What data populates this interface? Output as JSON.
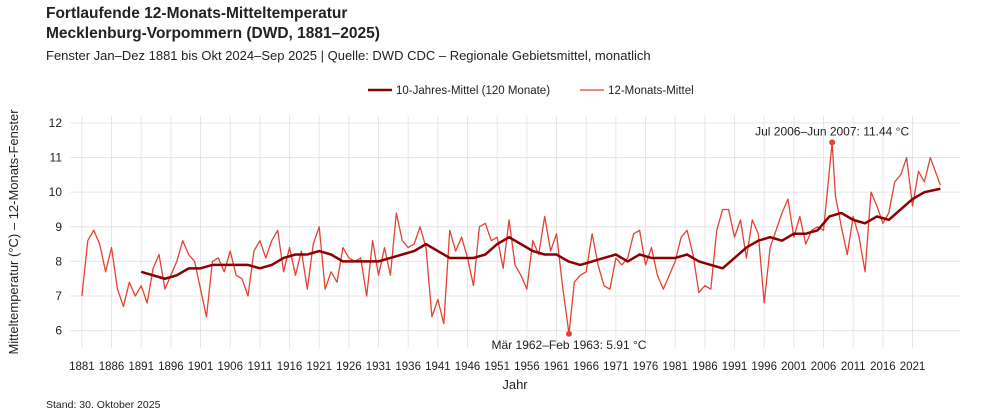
{
  "chart_data": {
    "type": "line",
    "title": "Fortlaufende 12-Monats-Mitteltemperatur",
    "title2": "Mecklenburg-Vorpommern (DWD, 1881–2025)",
    "subtitle": "Fenster Jan–Dez 1881 bis Okt 2024–Sep 2025 | Quelle: DWD CDC – Regionale Gebietsmittel, monatlich",
    "x_label": "Jahr",
    "y_label": "Mitteltemperatur (°C) – 12-Monats-Fenster",
    "caption": "Stand: 30. Oktober 2025",
    "xlim": [
      1879,
      2029
    ],
    "ylim": [
      5.5,
      12.2
    ],
    "xticks": [
      1881,
      1886,
      1891,
      1896,
      1901,
      1906,
      1911,
      1916,
      1921,
      1926,
      1931,
      1936,
      1941,
      1946,
      1951,
      1956,
      1961,
      1966,
      1971,
      1976,
      1981,
      1986,
      1991,
      1996,
      2001,
      2006,
      2011,
      2016,
      2021
    ],
    "yticks": [
      6,
      7,
      8,
      9,
      10,
      11,
      12
    ],
    "grid": true,
    "legend": "top",
    "series": [
      {
        "name": "10-Jahres-Mittel (120 Monate)",
        "color": "#8b0000",
        "width": 2.5,
        "x": [
          1891,
          1893,
          1895,
          1897,
          1899,
          1901,
          1903,
          1905,
          1907,
          1909,
          1911,
          1913,
          1915,
          1917,
          1919,
          1921,
          1923,
          1925,
          1927,
          1929,
          1931,
          1933,
          1935,
          1937,
          1939,
          1941,
          1943,
          1945,
          1947,
          1949,
          1951,
          1953,
          1955,
          1957,
          1959,
          1961,
          1963,
          1965,
          1967,
          1969,
          1971,
          1973,
          1975,
          1977,
          1979,
          1981,
          1983,
          1985,
          1987,
          1989,
          1991,
          1993,
          1995,
          1997,
          1999,
          2001,
          2003,
          2005,
          2007,
          2009,
          2011,
          2013,
          2015,
          2017,
          2019,
          2021,
          2023,
          2025.7
        ],
        "values": [
          7.7,
          7.6,
          7.5,
          7.6,
          7.8,
          7.8,
          7.9,
          7.9,
          7.9,
          7.9,
          7.8,
          7.9,
          8.1,
          8.2,
          8.2,
          8.3,
          8.2,
          8.0,
          8.0,
          8.0,
          8.0,
          8.1,
          8.2,
          8.3,
          8.5,
          8.3,
          8.1,
          8.1,
          8.1,
          8.2,
          8.5,
          8.7,
          8.5,
          8.3,
          8.2,
          8.2,
          8.0,
          7.9,
          8.0,
          8.1,
          8.2,
          8.0,
          8.2,
          8.1,
          8.1,
          8.1,
          8.2,
          8.0,
          7.9,
          7.8,
          8.1,
          8.4,
          8.6,
          8.7,
          8.6,
          8.8,
          8.8,
          8.9,
          9.3,
          9.4,
          9.2,
          9.1,
          9.3,
          9.2,
          9.5,
          9.8,
          10.0,
          10.1
        ]
      },
      {
        "name": "12-Monats-Mittel",
        "color": "#e34234",
        "width": 1.3,
        "x": [
          1881,
          1882,
          1883,
          1884,
          1885,
          1886,
          1887,
          1888,
          1889,
          1890,
          1891,
          1892,
          1893,
          1894,
          1895,
          1896,
          1897,
          1898,
          1899,
          1900,
          1901,
          1902,
          1903,
          1904,
          1905,
          1906,
          1907,
          1908,
          1909,
          1910,
          1911,
          1912,
          1913,
          1914,
          1915,
          1916,
          1917,
          1918,
          1919,
          1920,
          1921,
          1922,
          1923,
          1924,
          1925,
          1926,
          1927,
          1928,
          1929,
          1930,
          1931,
          1932,
          1933,
          1934,
          1935,
          1936,
          1937,
          1938,
          1939,
          1940,
          1941,
          1942,
          1943,
          1944,
          1945,
          1946,
          1947,
          1948,
          1949,
          1950,
          1951,
          1952,
          1953,
          1954,
          1955,
          1956,
          1957,
          1958,
          1959,
          1960,
          1961,
          1962,
          1963.1,
          1964,
          1965,
          1966,
          1967,
          1968,
          1969,
          1970,
          1971,
          1972,
          1973,
          1974,
          1975,
          1976,
          1977,
          1978,
          1979,
          1980,
          1981,
          1982,
          1983,
          1984,
          1985,
          1986,
          1987,
          1988,
          1989,
          1990,
          1991,
          1992,
          1993,
          1994,
          1995,
          1996,
          1997,
          1998,
          1999,
          2000,
          2001,
          2002,
          2003,
          2004,
          2005,
          2006,
          2007.45,
          2008,
          2009,
          2010,
          2011,
          2012,
          2013,
          2014,
          2015,
          2016,
          2017,
          2018,
          2019,
          2020,
          2021,
          2022,
          2023,
          2024,
          2025.7
        ],
        "values": [
          7.0,
          8.6,
          8.9,
          8.5,
          7.7,
          8.4,
          7.2,
          6.7,
          7.4,
          7.0,
          7.3,
          6.8,
          7.8,
          8.2,
          7.2,
          7.6,
          8.0,
          8.6,
          8.2,
          8.0,
          7.2,
          6.4,
          8.0,
          8.1,
          7.7,
          8.3,
          7.6,
          7.5,
          7.0,
          8.3,
          8.6,
          8.1,
          8.6,
          8.9,
          7.7,
          8.4,
          7.6,
          8.3,
          7.2,
          8.5,
          9.0,
          7.2,
          7.7,
          7.4,
          8.4,
          8.1,
          8.0,
          8.1,
          7.0,
          8.6,
          7.6,
          8.4,
          7.6,
          9.4,
          8.6,
          8.4,
          8.5,
          9.0,
          8.4,
          6.4,
          6.9,
          6.2,
          8.9,
          8.3,
          8.7,
          8.1,
          7.3,
          9.0,
          9.1,
          8.6,
          8.7,
          7.8,
          9.2,
          7.9,
          7.6,
          7.2,
          8.6,
          8.2,
          9.3,
          8.3,
          8.8,
          7.3,
          5.91,
          7.4,
          7.6,
          7.7,
          8.8,
          7.9,
          7.3,
          7.2,
          8.1,
          7.9,
          8.1,
          8.8,
          8.9,
          7.9,
          8.4,
          7.6,
          7.2,
          7.6,
          8.0,
          8.7,
          8.9,
          8.2,
          7.1,
          7.3,
          7.2,
          8.9,
          9.5,
          9.5,
          8.7,
          9.2,
          8.1,
          9.2,
          8.8,
          6.8,
          8.4,
          8.9,
          9.4,
          9.8,
          8.7,
          9.3,
          8.5,
          8.9,
          9.0,
          8.9,
          11.44,
          9.9,
          9.0,
          8.2,
          9.3,
          8.7,
          7.7,
          10.0,
          9.6,
          9.1,
          9.4,
          10.3,
          10.5,
          11.0,
          9.6,
          10.6,
          10.3,
          11.0,
          10.2
        ]
      }
    ],
    "annotations": [
      {
        "text": "Jul 2006–Jun 2007: 11.44 °C",
        "x": 2007.45,
        "y": 11.44,
        "color": "#e34234",
        "position": "above"
      },
      {
        "text": "Mär 1962–Feb 1963: 5.91 °C",
        "x": 1963.1,
        "y": 5.91,
        "color": "#e34234",
        "position": "below"
      }
    ]
  }
}
